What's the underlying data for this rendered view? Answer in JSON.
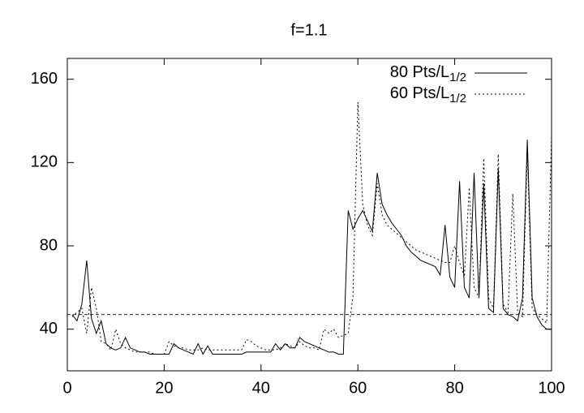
{
  "chart_data": {
    "type": "line",
    "title": "f=1.1",
    "x": [
      1,
      2,
      3,
      4,
      5,
      6,
      7,
      8,
      9,
      10,
      11,
      12,
      13,
      14,
      15,
      16,
      17,
      18,
      19,
      20,
      21,
      22,
      23,
      24,
      25,
      26,
      27,
      28,
      29,
      30,
      31,
      32,
      33,
      34,
      35,
      36,
      37,
      38,
      39,
      40,
      41,
      42,
      43,
      44,
      45,
      46,
      47,
      48,
      49,
      50,
      51,
      52,
      53,
      54,
      55,
      56,
      57,
      58,
      59,
      60,
      61,
      62,
      63,
      64,
      65,
      66,
      67,
      68,
      69,
      70,
      71,
      72,
      73,
      74,
      75,
      76,
      77,
      78,
      79,
      80,
      81,
      82,
      83,
      84,
      85,
      86,
      87,
      88,
      89,
      90,
      91,
      92,
      93,
      94,
      95,
      96,
      97,
      98,
      99,
      100
    ],
    "series": [
      {
        "name": "80 Pts/L",
        "name_subscript": "1/2",
        "color": "#000000",
        "dash": "none",
        "values": [
          47,
          44,
          52,
          73,
          45,
          38,
          44,
          33,
          31,
          30,
          31,
          36,
          31,
          30,
          29,
          29,
          28,
          28,
          28,
          28,
          28,
          33,
          31,
          30,
          29,
          28,
          33,
          28,
          32,
          28,
          28,
          28,
          28,
          28,
          28,
          28,
          29,
          29,
          29,
          29,
          29,
          29,
          33,
          30,
          33,
          31,
          31,
          36,
          34,
          33,
          32,
          31,
          30,
          29,
          29,
          28,
          28,
          97,
          88,
          93,
          97,
          92,
          87,
          115,
          100,
          95,
          91,
          88,
          85,
          80,
          77,
          75,
          73,
          72,
          71,
          70,
          66,
          90,
          65,
          60,
          111,
          60,
          55,
          115,
          55,
          110,
          50,
          48,
          117,
          50,
          47,
          46,
          44,
          55,
          131,
          55,
          46,
          42,
          40,
          40
        ]
      },
      {
        "name": "60 Pts/L",
        "name_subscript": "1/2",
        "color": "#000000",
        "dash": "2 3",
        "values": [
          46,
          48,
          50,
          38,
          60,
          50,
          34,
          33,
          30,
          40,
          33,
          31,
          30,
          29,
          29,
          29,
          29,
          28,
          28,
          28,
          34,
          32,
          31,
          31,
          30,
          30,
          30,
          31,
          30,
          30,
          30,
          30,
          30,
          30,
          30,
          30,
          35,
          34,
          32,
          31,
          30,
          30,
          30,
          31,
          33,
          32,
          31,
          34,
          32,
          31,
          31,
          30,
          40,
          38,
          40,
          36,
          37,
          38,
          56,
          149,
          100,
          90,
          85,
          110,
          95,
          90,
          88,
          86,
          84,
          82,
          80,
          78,
          77,
          76,
          75,
          74,
          73,
          72,
          72,
          80,
          72,
          65,
          108,
          60,
          55,
          122,
          55,
          50,
          124,
          52,
          48,
          105,
          48,
          46,
          125,
          50,
          47,
          45,
          43,
          133
        ]
      }
    ],
    "hline": 47,
    "xlim": [
      0,
      100
    ],
    "xticks": [
      0,
      20,
      40,
      60,
      80,
      100
    ],
    "ylim": [
      20,
      170
    ],
    "yticks": [
      40,
      80,
      120,
      160
    ],
    "legend": "upper right"
  }
}
